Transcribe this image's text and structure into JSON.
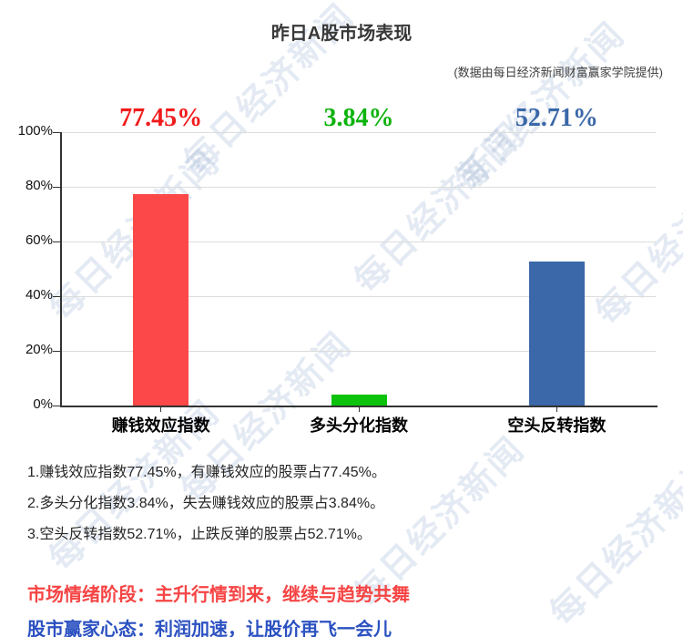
{
  "header": {
    "title": "昨日A股市场表现",
    "subtitle": "(数据由每日经济新闻财富赢家学院提供)"
  },
  "chart_data": {
    "type": "bar",
    "title": "昨日A股市场表现",
    "categories": [
      "赚钱效应指数",
      "多头分化指数",
      "空头反转指数"
    ],
    "values": [
      77.45,
      3.84,
      52.71
    ],
    "value_labels": [
      "77.45%",
      "3.84%",
      "52.71%"
    ],
    "bar_colors": [
      "#fc4848",
      "#0cc20c",
      "#3a68a8"
    ],
    "value_label_colors": [
      "#f21b1b",
      "#0db30d",
      "#3a68a8"
    ],
    "y_tick_labels": [
      "100%",
      "80%",
      "60%",
      "40%",
      "20%",
      "0%"
    ],
    "ylim": [
      0,
      100
    ],
    "grid": true,
    "legend": "none"
  },
  "notes": [
    "1.赚钱效应指数77.45%，有赚钱效应的股票占77.45%。",
    "2.多头分化指数3.84%，失去赚钱效应的股票占3.84%。",
    "3.空头反转指数52.71%，止跌反弹的股票占52.71%。"
  ],
  "footer": {
    "line1": "市场情绪阶段：主升行情到来，继续与趋势共舞",
    "line1_color": "#f64444",
    "line2": "股市赢家心态：利润加速，让股价再飞一会儿",
    "line2_color": "#2b51c1"
  },
  "watermark": {
    "text": "每日经济新闻",
    "color": "#3b67a6"
  }
}
